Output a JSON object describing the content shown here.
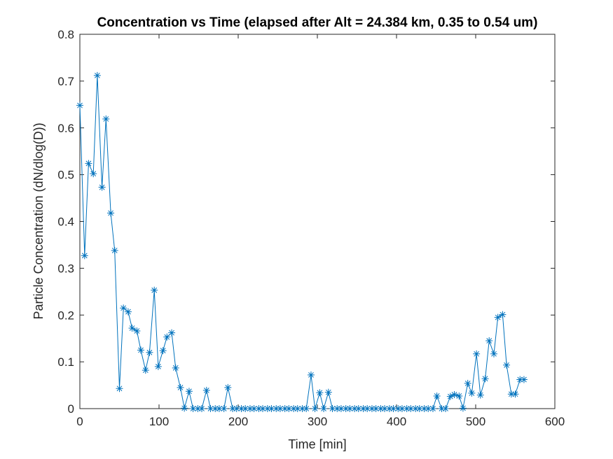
{
  "chart_data": {
    "type": "line",
    "title": "Concentration vs Time (elapsed after Alt = 24.384 km, 0.35 to 0.54 um)",
    "xlabel": "Time [min]",
    "ylabel": "Particle Concentration (dN/dlog(D))",
    "xlim": [
      0,
      600
    ],
    "ylim": [
      0,
      0.8
    ],
    "xticks": [
      0,
      100,
      200,
      300,
      400,
      500,
      600
    ],
    "yticks": [
      0,
      0.1,
      0.2,
      0.3,
      0.4,
      0.5,
      0.6,
      0.7,
      0.8
    ],
    "xtick_labels": [
      "0",
      "100",
      "200",
      "300",
      "400",
      "500",
      "600"
    ],
    "ytick_labels": [
      "0",
      "0.1",
      "0.2",
      "0.3",
      "0.4",
      "0.5",
      "0.6",
      "0.7",
      "0.8"
    ],
    "grid": false,
    "marker": "asterisk",
    "color": "#0072BD",
    "series": [
      {
        "x": [
          0,
          6,
          11,
          17,
          22,
          28,
          33,
          39,
          44,
          50,
          55,
          61,
          66,
          72,
          77,
          83,
          88,
          94,
          99,
          105,
          110,
          116,
          121,
          127,
          132,
          138,
          143,
          149,
          154,
          160,
          165,
          171,
          176,
          182,
          187,
          193,
          198,
          204,
          209,
          215,
          220,
          226,
          231,
          237,
          242,
          248,
          253,
          259,
          264,
          270,
          275,
          281,
          286,
          292,
          297,
          303,
          308,
          314,
          319,
          325,
          330,
          336,
          341,
          347,
          352,
          358,
          363,
          369,
          374,
          380,
          385,
          391,
          396,
          402,
          407,
          413,
          418,
          424,
          429,
          435,
          440,
          446,
          451,
          457,
          462,
          468,
          473,
          479,
          484,
          490,
          495,
          501,
          506,
          512,
          517,
          523,
          528,
          534,
          539,
          545,
          550,
          556,
          561
        ],
        "values": [
          0.648,
          0.327,
          0.524,
          0.502,
          0.712,
          0.473,
          0.619,
          0.418,
          0.338,
          0.043,
          0.215,
          0.207,
          0.172,
          0.166,
          0.125,
          0.082,
          0.12,
          0.253,
          0.09,
          0.124,
          0.153,
          0.162,
          0.087,
          0.045,
          0.001,
          0.037,
          0.0,
          0.0,
          0.0,
          0.039,
          0.0,
          0.0,
          0.0,
          0.0,
          0.045,
          0.0,
          0.0,
          0.0,
          0.0,
          0.0,
          0.0,
          0.0,
          0.0,
          0.0,
          0.0,
          0.0,
          0.0,
          0.0,
          0.0,
          0.0,
          0.0,
          0.0,
          0.0,
          0.072,
          0.0,
          0.034,
          0.0,
          0.035,
          0.0,
          0.0,
          0.0,
          0.0,
          0.0,
          0.0,
          0.0,
          0.0,
          0.0,
          0.0,
          0.0,
          0.0,
          0.0,
          0.0,
          0.0,
          0.0,
          0.0,
          0.0,
          0.0,
          0.0,
          0.0,
          0.0,
          0.0,
          0.0,
          0.027,
          0.0,
          0.0,
          0.026,
          0.03,
          0.027,
          0.001,
          0.054,
          0.033,
          0.117,
          0.029,
          0.064,
          0.145,
          0.117,
          0.195,
          0.201,
          0.093,
          0.031,
          0.031,
          0.062,
          0.062
        ]
      }
    ]
  }
}
